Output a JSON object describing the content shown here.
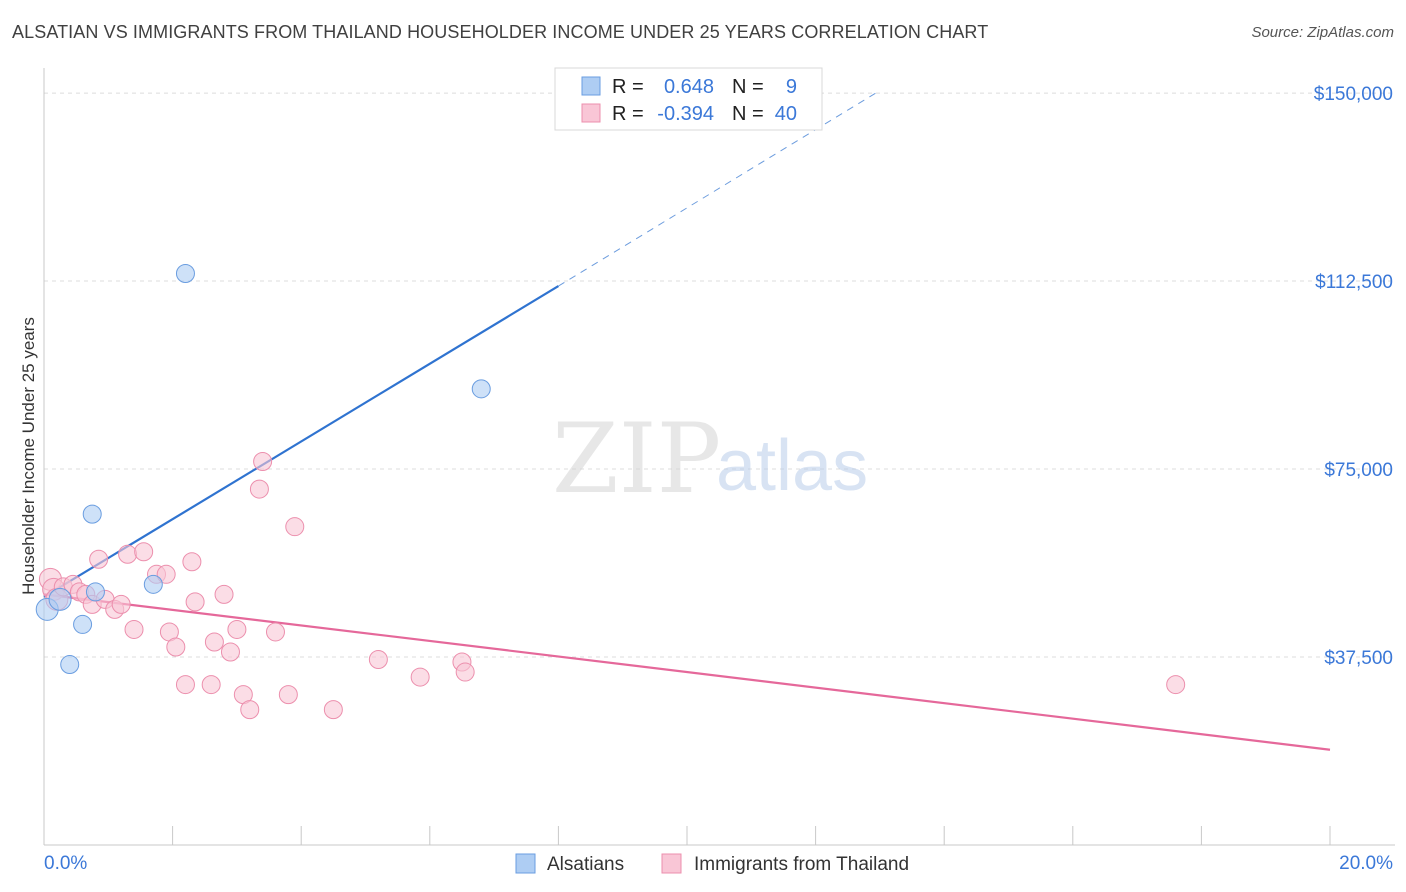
{
  "header": {
    "title": "ALSATIAN VS IMMIGRANTS FROM THAILAND HOUSEHOLDER INCOME UNDER 25 YEARS CORRELATION CHART",
    "source": "Source: ZipAtlas.com"
  },
  "watermark": {
    "zip": "ZIP",
    "atlas": "atlas"
  },
  "stats_legend": {
    "rows": [
      {
        "r_label": "R =",
        "r_value": "0.648",
        "n_label": "N =",
        "n_value": "9",
        "color": "#9cc1f0"
      },
      {
        "r_label": "R =",
        "r_value": "-0.394",
        "n_label": "N =",
        "n_value": "40",
        "color": "#f7b6cb"
      }
    ]
  },
  "bottom_legend": [
    {
      "label": "Alsatians",
      "color": "#aecdf3"
    },
    {
      "label": "Immigrants from Thailand",
      "color": "#f9c6d6"
    }
  ],
  "chart_data": {
    "type": "scatter",
    "ylabel": "Householder Income Under 25 years",
    "xlim": [
      0,
      20
    ],
    "ylim": [
      0,
      155000
    ],
    "x_tick_labels": {
      "left": "0.0%",
      "right": "20.0%"
    },
    "y_ticks": [
      {
        "value": 37500,
        "label": "$37,500"
      },
      {
        "value": 75000,
        "label": "$75,000"
      },
      {
        "value": 112500,
        "label": "$112,500"
      },
      {
        "value": 150000,
        "label": "$150,000"
      }
    ],
    "grid": true,
    "series": [
      {
        "name": "Alsatians",
        "color": "#aecdf3",
        "stroke": "#6a9de0",
        "line_color": "#2f73d0",
        "points": [
          {
            "x": 0.05,
            "y": 47000
          },
          {
            "x": 0.25,
            "y": 49000
          },
          {
            "x": 0.4,
            "y": 36000
          },
          {
            "x": 0.6,
            "y": 44000
          },
          {
            "x": 0.75,
            "y": 66000
          },
          {
            "x": 0.8,
            "y": 50500
          },
          {
            "x": 1.7,
            "y": 52000
          },
          {
            "x": 2.2,
            "y": 114000
          },
          {
            "x": 6.8,
            "y": 91000
          }
        ],
        "trend": {
          "x0": 0.0,
          "y0": 49500,
          "x1": 8.0,
          "y1": 111500,
          "x_ext": 13.0,
          "y_ext": 150500
        }
      },
      {
        "name": "Immigrants from Thailand",
        "color": "#f9c6d6",
        "stroke": "#ec8fad",
        "line_color": "#e5689a",
        "points": [
          {
            "x": 0.1,
            "y": 53000
          },
          {
            "x": 0.15,
            "y": 51000
          },
          {
            "x": 0.2,
            "y": 49000
          },
          {
            "x": 0.3,
            "y": 51500
          },
          {
            "x": 0.45,
            "y": 52000
          },
          {
            "x": 0.55,
            "y": 50500
          },
          {
            "x": 0.65,
            "y": 50000
          },
          {
            "x": 0.75,
            "y": 48000
          },
          {
            "x": 0.85,
            "y": 57000
          },
          {
            "x": 0.95,
            "y": 49000
          },
          {
            "x": 1.1,
            "y": 47000
          },
          {
            "x": 1.2,
            "y": 48000
          },
          {
            "x": 1.3,
            "y": 58000
          },
          {
            "x": 1.4,
            "y": 43000
          },
          {
            "x": 1.55,
            "y": 58500
          },
          {
            "x": 1.75,
            "y": 54000
          },
          {
            "x": 1.9,
            "y": 54000
          },
          {
            "x": 1.95,
            "y": 42500
          },
          {
            "x": 2.05,
            "y": 39500
          },
          {
            "x": 2.2,
            "y": 32000
          },
          {
            "x": 2.3,
            "y": 56500
          },
          {
            "x": 2.35,
            "y": 48500
          },
          {
            "x": 2.6,
            "y": 32000
          },
          {
            "x": 2.65,
            "y": 40500
          },
          {
            "x": 2.8,
            "y": 50000
          },
          {
            "x": 2.9,
            "y": 38500
          },
          {
            "x": 3.0,
            "y": 43000
          },
          {
            "x": 3.1,
            "y": 30000
          },
          {
            "x": 3.2,
            "y": 27000
          },
          {
            "x": 3.35,
            "y": 71000
          },
          {
            "x": 3.4,
            "y": 76500
          },
          {
            "x": 3.6,
            "y": 42500
          },
          {
            "x": 3.8,
            "y": 30000
          },
          {
            "x": 3.9,
            "y": 63500
          },
          {
            "x": 4.5,
            "y": 27000
          },
          {
            "x": 5.2,
            "y": 37000
          },
          {
            "x": 5.85,
            "y": 33500
          },
          {
            "x": 6.5,
            "y": 36500
          },
          {
            "x": 6.55,
            "y": 34500
          },
          {
            "x": 17.6,
            "y": 32000
          }
        ],
        "trend": {
          "x0": 0.0,
          "y0": 50000,
          "x1": 20.0,
          "y1": 19000
        }
      }
    ]
  }
}
